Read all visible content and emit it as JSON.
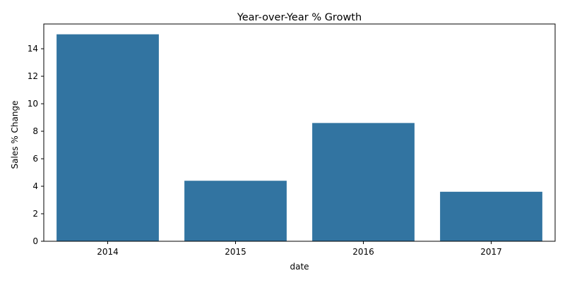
{
  "chart_data": {
    "type": "bar",
    "title": "Year-over-Year % Growth",
    "xlabel": "date",
    "ylabel": "Sales % Change",
    "categories": [
      "2014",
      "2015",
      "2016",
      "2017"
    ],
    "values": [
      15.05,
      4.4,
      8.6,
      3.6
    ],
    "ylim": [
      0,
      15.8
    ],
    "yticks": [
      0,
      2,
      4,
      6,
      8,
      10,
      12,
      14
    ],
    "grid": false,
    "bar_color": "#3274a1"
  }
}
